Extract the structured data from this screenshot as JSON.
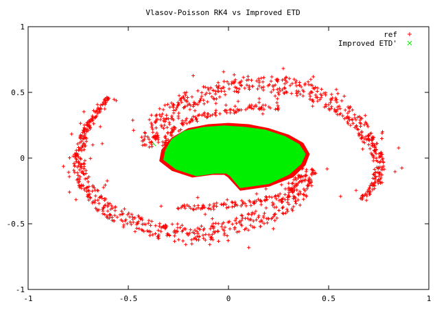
{
  "chart_data": {
    "type": "scatter",
    "title": "Vlasov-Poisson RK4 vs Improved ETD",
    "xlabel": "",
    "ylabel": "",
    "xlim": [
      -1,
      1
    ],
    "ylim": [
      -1,
      1
    ],
    "x_ticks": [
      -1,
      -0.5,
      0,
      0.5,
      1
    ],
    "x_tick_labels": [
      "-1",
      "-0.5",
      "0",
      "0.5",
      "1"
    ],
    "y_ticks": [
      -1,
      -0.5,
      0,
      0.5,
      1
    ],
    "y_tick_labels": [
      "-1",
      "-0.5",
      "0",
      "0.5",
      "1"
    ],
    "grid": false,
    "legend_position": "top-right",
    "series": [
      {
        "name": "ref",
        "marker": "plus",
        "color": "#ff0000",
        "core_polygon": [
          [
            0.06,
            -0.24
          ],
          [
            0.2,
            -0.21
          ],
          [
            0.32,
            -0.14
          ],
          [
            0.38,
            -0.05
          ],
          [
            0.4,
            0.03
          ],
          [
            0.37,
            0.11
          ],
          [
            0.3,
            0.17
          ],
          [
            0.2,
            0.22
          ],
          [
            0.1,
            0.25
          ],
          [
            0.0,
            0.26
          ],
          [
            -0.1,
            0.25
          ],
          [
            -0.2,
            0.22
          ],
          [
            -0.28,
            0.15
          ],
          [
            -0.33,
            0.06
          ],
          [
            -0.34,
            -0.02
          ],
          [
            -0.28,
            -0.09
          ],
          [
            -0.18,
            -0.14
          ],
          [
            -0.08,
            -0.12
          ],
          [
            -0.02,
            -0.12
          ],
          [
            0.0,
            -0.14
          ]
        ],
        "arms": [
          {
            "points": [
              [
                -0.4,
                0.07
              ],
              [
                -0.38,
                0.2
              ],
              [
                -0.32,
                0.33
              ],
              [
                -0.2,
                0.44
              ],
              [
                -0.04,
                0.52
              ],
              [
                0.12,
                0.57
              ],
              [
                0.3,
                0.55
              ],
              [
                0.45,
                0.48
              ],
              [
                0.57,
                0.38
              ],
              [
                0.66,
                0.24
              ],
              [
                0.73,
                0.07
              ],
              [
                0.755,
                -0.05
              ],
              [
                0.74,
                -0.17
              ],
              [
                0.71,
                -0.25
              ],
              [
                0.66,
                -0.31
              ]
            ],
            "width": [
              0.04,
              0.05,
              0.06,
              0.06,
              0.06,
              0.06,
              0.06,
              0.06,
              0.05,
              0.04,
              0.03,
              0.025,
              0.02,
              0.015,
              0.01
            ],
            "density": 5,
            "scatter": 0.025
          },
          {
            "points": [
              [
                0.4,
                -0.08
              ],
              [
                0.37,
                -0.22
              ],
              [
                0.3,
                -0.34
              ],
              [
                0.18,
                -0.45
              ],
              [
                0.02,
                -0.53
              ],
              [
                -0.14,
                -0.58
              ],
              [
                -0.32,
                -0.56
              ],
              [
                -0.48,
                -0.49
              ],
              [
                -0.61,
                -0.38
              ],
              [
                -0.7,
                -0.24
              ],
              [
                -0.745,
                -0.08
              ],
              [
                -0.74,
                0.05
              ],
              [
                -0.72,
                0.17
              ],
              [
                -0.7,
                0.25
              ],
              [
                -0.65,
                0.36
              ],
              [
                -0.6,
                0.46
              ]
            ],
            "width": [
              0.04,
              0.05,
              0.06,
              0.06,
              0.06,
              0.06,
              0.06,
              0.06,
              0.05,
              0.04,
              0.03,
              0.025,
              0.02,
              0.015,
              0.012,
              0.01
            ],
            "density": 5,
            "scatter": 0.025
          },
          {
            "points": [
              [
                -0.32,
                0.1
              ],
              [
                -0.3,
                0.18
              ],
              [
                -0.24,
                0.25
              ],
              [
                -0.12,
                0.32
              ],
              [
                0.02,
                0.37
              ],
              [
                0.15,
                0.39
              ],
              [
                0.26,
                0.38
              ]
            ],
            "width": [
              0.015,
              0.02,
              0.025,
              0.025,
              0.025,
              0.02,
              0.015
            ],
            "density": 3,
            "scatter": 0.02
          },
          {
            "points": [
              [
                0.36,
                -0.12
              ],
              [
                0.32,
                -0.22
              ],
              [
                0.24,
                -0.3
              ],
              [
                0.12,
                -0.34
              ],
              [
                -0.02,
                -0.36
              ],
              [
                -0.14,
                -0.38
              ],
              [
                -0.26,
                -0.37
              ]
            ],
            "width": [
              0.015,
              0.02,
              0.025,
              0.025,
              0.025,
              0.02,
              0.015
            ],
            "density": 3,
            "scatter": 0.02
          }
        ]
      },
      {
        "name": "Improved ETD'",
        "marker": "cross",
        "color": "#00ee00",
        "core_polygon": [
          [
            0.06,
            -0.22
          ],
          [
            0.2,
            -0.19
          ],
          [
            0.3,
            -0.12
          ],
          [
            0.36,
            -0.04
          ],
          [
            0.38,
            0.03
          ],
          [
            0.35,
            0.1
          ],
          [
            0.28,
            0.16
          ],
          [
            0.18,
            0.21
          ],
          [
            0.08,
            0.23
          ],
          [
            -0.02,
            0.24
          ],
          [
            -0.12,
            0.23
          ],
          [
            -0.22,
            0.2
          ],
          [
            -0.28,
            0.14
          ],
          [
            -0.31,
            0.06
          ],
          [
            -0.32,
            -0.01
          ],
          [
            -0.26,
            -0.08
          ],
          [
            -0.16,
            -0.13
          ],
          [
            -0.07,
            -0.11
          ],
          [
            -0.01,
            -0.11
          ],
          [
            0.01,
            -0.13
          ]
        ],
        "arms": [
          {
            "points": [
              [
                -0.38,
                0.07
              ],
              [
                -0.37,
                0.2
              ],
              [
                -0.31,
                0.32
              ],
              [
                -0.19,
                0.43
              ],
              [
                -0.03,
                0.5
              ],
              [
                0.12,
                0.55
              ],
              [
                0.3,
                0.53
              ],
              [
                0.45,
                0.46
              ],
              [
                0.57,
                0.37
              ],
              [
                0.66,
                0.23
              ],
              [
                0.725,
                0.07
              ],
              [
                0.75,
                -0.05
              ],
              [
                0.74,
                -0.17
              ],
              [
                0.72,
                -0.25
              ],
              [
                0.68,
                -0.3
              ]
            ],
            "width": [
              0.035,
              0.045,
              0.055,
              0.055,
              0.055,
              0.055,
              0.055,
              0.055,
              0.045,
              0.035,
              0.03,
              0.025,
              0.02,
              0.015,
              0.01
            ],
            "density": 7,
            "scatter": 0.03
          },
          {
            "points": [
              [
                0.38,
                -0.08
              ],
              [
                0.35,
                -0.21
              ],
              [
                0.29,
                -0.33
              ],
              [
                0.17,
                -0.44
              ],
              [
                0.02,
                -0.51
              ],
              [
                -0.14,
                -0.56
              ],
              [
                -0.32,
                -0.54
              ],
              [
                -0.48,
                -0.47
              ],
              [
                -0.6,
                -0.37
              ],
              [
                -0.69,
                -0.23
              ],
              [
                -0.735,
                -0.08
              ],
              [
                -0.735,
                0.05
              ],
              [
                -0.72,
                0.17
              ],
              [
                -0.7,
                0.26
              ],
              [
                -0.66,
                0.37
              ],
              [
                -0.62,
                0.47
              ]
            ],
            "width": [
              0.035,
              0.045,
              0.055,
              0.055,
              0.055,
              0.055,
              0.055,
              0.055,
              0.045,
              0.035,
              0.03,
              0.025,
              0.02,
              0.015,
              0.012,
              0.01
            ],
            "density": 7,
            "scatter": 0.03
          },
          {
            "points": [
              [
                -0.3,
                0.1
              ],
              [
                -0.28,
                0.18
              ],
              [
                -0.22,
                0.25
              ],
              [
                -0.1,
                0.31
              ],
              [
                0.03,
                0.35
              ],
              [
                0.15,
                0.37
              ],
              [
                0.25,
                0.36
              ]
            ],
            "width": [
              0.015,
              0.02,
              0.025,
              0.025,
              0.025,
              0.02,
              0.015
            ],
            "density": 3,
            "scatter": 0.02
          },
          {
            "points": [
              [
                0.34,
                -0.12
              ],
              [
                0.3,
                -0.22
              ],
              [
                0.22,
                -0.29
              ],
              [
                0.1,
                -0.33
              ],
              [
                -0.03,
                -0.35
              ],
              [
                -0.15,
                -0.37
              ],
              [
                -0.26,
                -0.36
              ]
            ],
            "width": [
              0.015,
              0.02,
              0.025,
              0.025,
              0.025,
              0.02,
              0.015
            ],
            "density": 3,
            "scatter": 0.02
          }
        ]
      }
    ]
  }
}
